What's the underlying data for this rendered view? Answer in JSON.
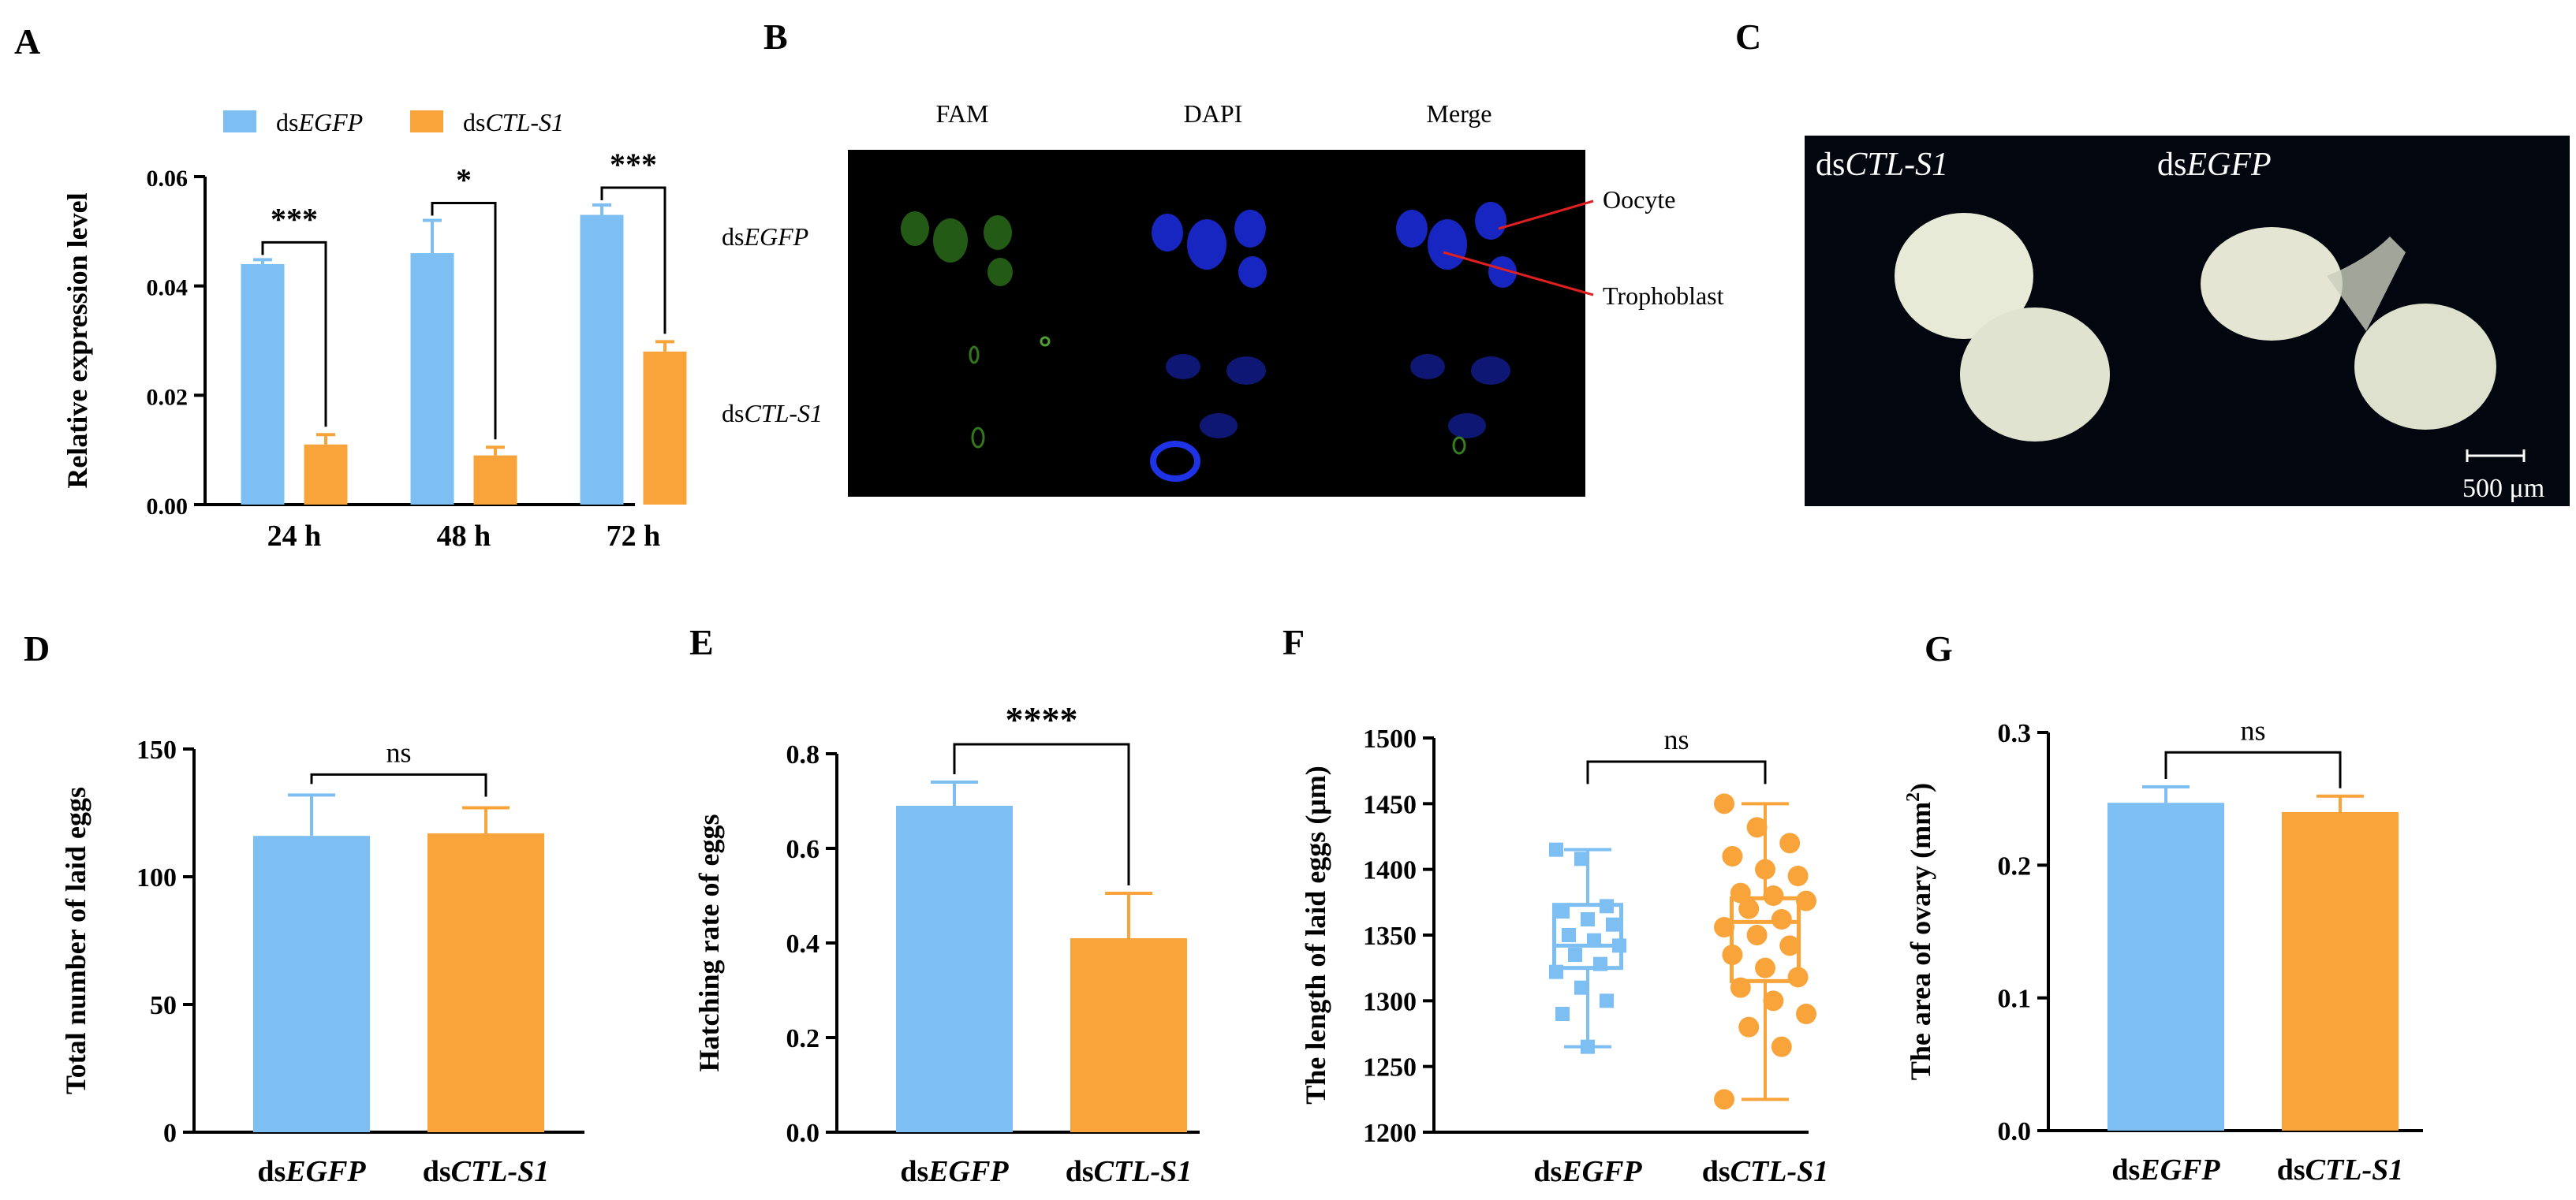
{
  "colors": {
    "egfp": "#7dbff3",
    "ctl": "#f9a43a",
    "axis": "#000000",
    "panel_bg": "#000000"
  },
  "panels": {
    "A": {
      "letter": "A"
    },
    "B": {
      "letter": "B",
      "col_labels": [
        "FAM",
        "DAPI",
        "Merge"
      ],
      "row1_prefix": "ds",
      "row1_italic": "EGFP",
      "row2_prefix": "ds",
      "row2_italic": "CTL-S1",
      "callouts": [
        "Oocyte",
        "Trophoblast"
      ]
    },
    "C": {
      "letter": "C",
      "left_prefix": "ds",
      "left_italic": "CTL-S1",
      "right_prefix": "ds",
      "right_italic": "EGFP",
      "scale": "500 μm"
    },
    "D": {
      "letter": "D"
    },
    "E": {
      "letter": "E"
    },
    "F": {
      "letter": "F"
    },
    "G": {
      "letter": "G"
    }
  },
  "legend": {
    "s1_prefix": "ds",
    "s1_italic": "EGFP",
    "s2_prefix": "ds",
    "s2_italic": "CTL-S1"
  },
  "chart_data": [
    {
      "id": "A",
      "type": "bar",
      "ylabel": "Relative  expression  level",
      "categories": [
        "24 h",
        "48 h",
        "72 h"
      ],
      "series": [
        {
          "name": "dsEGFP",
          "values": [
            0.044,
            0.046,
            0.053
          ],
          "errors": [
            0.0008,
            0.006,
            0.0018
          ]
        },
        {
          "name": "dsCTL-S1",
          "values": [
            0.011,
            0.009,
            0.028
          ],
          "errors": [
            0.0018,
            0.0015,
            0.0018
          ]
        }
      ],
      "significance": [
        "***",
        "*",
        "***"
      ],
      "ylim": [
        0,
        0.06
      ],
      "yticks": [
        "0.00",
        "0.02",
        "0.04",
        "0.06"
      ]
    },
    {
      "id": "D",
      "type": "bar",
      "ylabel": "Total number of laid eggs",
      "categories": [
        {
          "prefix": "ds",
          "italic": "EGFP"
        },
        {
          "prefix": "ds",
          "italic": "CTL-S1"
        }
      ],
      "values": [
        116,
        117
      ],
      "errors": [
        16,
        10
      ],
      "significance": "ns",
      "ylim": [
        0,
        150
      ],
      "yticks": [
        "0",
        "50",
        "100",
        "150"
      ]
    },
    {
      "id": "E",
      "type": "bar",
      "ylabel": "Hatching rate of eggs",
      "categories": [
        {
          "prefix": "ds",
          "italic": "EGFP"
        },
        {
          "prefix": "ds",
          "italic": "CTL-S1"
        }
      ],
      "values": [
        0.69,
        0.41
      ],
      "errors": [
        0.05,
        0.095
      ],
      "significance": "****",
      "ylim": [
        0,
        0.8
      ],
      "yticks": [
        "0.0",
        "0.2",
        "0.4",
        "0.6",
        "0.8"
      ]
    },
    {
      "id": "F",
      "type": "scatter",
      "ylabel": "The length of laid eggs (μm)",
      "categories": [
        {
          "prefix": "ds",
          "italic": "EGFP"
        },
        {
          "prefix": "ds",
          "italic": "CTL-S1"
        }
      ],
      "box": [
        {
          "min": 1265,
          "q1": 1325,
          "median": 1342,
          "q3": 1373,
          "max": 1415
        },
        {
          "min": 1225,
          "q1": 1315,
          "median": 1360,
          "q3": 1378,
          "max": 1450
        }
      ],
      "points": [
        [
          1415,
          1408,
          1372,
          1368,
          1362,
          1358,
          1350,
          1346,
          1342,
          1335,
          1328,
          1322,
          1310,
          1300,
          1290,
          1265
        ],
        [
          1450,
          1432,
          1420,
          1410,
          1400,
          1395,
          1382,
          1380,
          1376,
          1370,
          1362,
          1356,
          1350,
          1342,
          1335,
          1325,
          1318,
          1310,
          1300,
          1290,
          1280,
          1265,
          1225
        ]
      ],
      "significance": "ns",
      "ylim": [
        1200,
        1500
      ],
      "yticks": [
        "1200",
        "1250",
        "1300",
        "1350",
        "1400",
        "1450",
        "1500"
      ]
    },
    {
      "id": "G",
      "type": "bar",
      "ylabel": "The area of ovary (mm",
      "ylabel_sup": "2",
      "ylabel_tail": ")",
      "categories": [
        {
          "prefix": "ds",
          "italic": "EGFP"
        },
        {
          "prefix": "ds",
          "italic": "CTL-S1"
        }
      ],
      "values": [
        0.247,
        0.24
      ],
      "errors": [
        0.012,
        0.012
      ],
      "significance": "ns",
      "ylim": [
        0,
        0.3
      ],
      "yticks": [
        "0.0",
        "0.1",
        "0.2",
        "0.3"
      ]
    }
  ]
}
